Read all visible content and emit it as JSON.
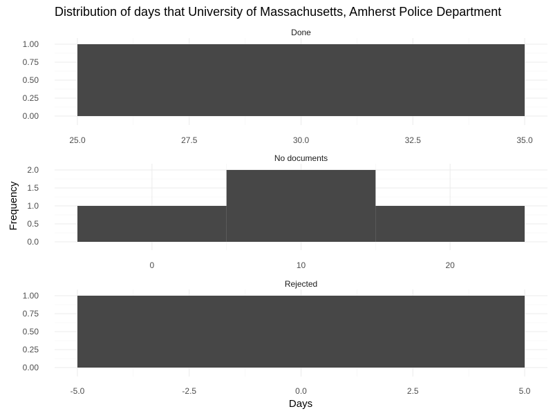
{
  "chart_data": {
    "type": "bar",
    "title": "Distribution of days that University of Massachusetts, Amherst Police Department",
    "xlabel": "Days",
    "ylabel": "Frequency",
    "grid": true,
    "bar_color": "#474747",
    "panels": [
      {
        "label": "Done",
        "xlim": [
          25.0,
          35.0
        ],
        "xticks": [
          "25.0",
          "27.5",
          "30.0",
          "32.5",
          "35.0"
        ],
        "ylim": [
          0,
          1
        ],
        "yticks": [
          "0.00",
          "0.25",
          "0.50",
          "0.75",
          "1.00"
        ],
        "bins": [
          {
            "x0": 25.0,
            "x1": 35.0,
            "count": 1
          }
        ]
      },
      {
        "label": "No documents",
        "xlim": [
          -5,
          25
        ],
        "xticks": [
          "0",
          "10",
          "20"
        ],
        "ylim": [
          0,
          2
        ],
        "yticks": [
          "0.0",
          "0.5",
          "1.0",
          "1.5",
          "2.0"
        ],
        "bins": [
          {
            "x0": -5,
            "x1": 5,
            "count": 1
          },
          {
            "x0": 5,
            "x1": 15,
            "count": 2
          },
          {
            "x0": 15,
            "x1": 25,
            "count": 1
          }
        ]
      },
      {
        "label": "Rejected",
        "xlim": [
          -5.0,
          5.0
        ],
        "xticks": [
          "-5.0",
          "-2.5",
          "0.0",
          "2.5",
          "5.0"
        ],
        "ylim": [
          0,
          1
        ],
        "yticks": [
          "0.00",
          "0.25",
          "0.50",
          "0.75",
          "1.00"
        ],
        "bins": [
          {
            "x0": -5.0,
            "x1": 5.0,
            "count": 1
          }
        ]
      }
    ]
  }
}
